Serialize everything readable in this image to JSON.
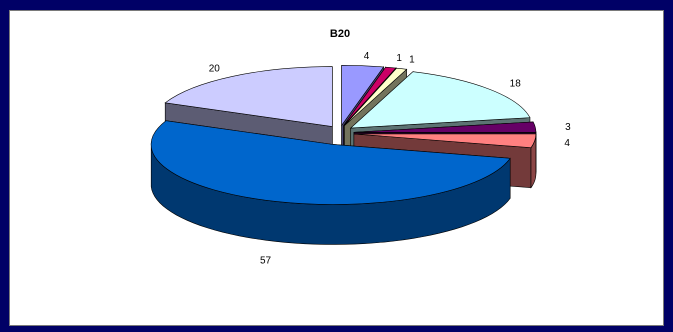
{
  "chart_data": {
    "type": "pie",
    "title": "B20",
    "three_d": true,
    "exploded": true,
    "legend": "none",
    "slices": [
      {
        "value": 4,
        "label": "4",
        "color": "#9999ff"
      },
      {
        "value": 1,
        "label": "1",
        "color": "#cc0066"
      },
      {
        "value": 1,
        "label": "1",
        "color": "#ffffcc"
      },
      {
        "value": 18,
        "label": "18",
        "color": "#ccffff"
      },
      {
        "value": 3,
        "label": "3",
        "color": "#660066"
      },
      {
        "value": 4,
        "label": "4",
        "color": "#ff8080"
      },
      {
        "value": 57,
        "label": "57",
        "color": "#0066cc"
      },
      {
        "value": 20,
        "label": "20",
        "color": "#ccccff"
      }
    ]
  },
  "colors": {
    "background": "#000066",
    "frame": "#ffffff"
  }
}
